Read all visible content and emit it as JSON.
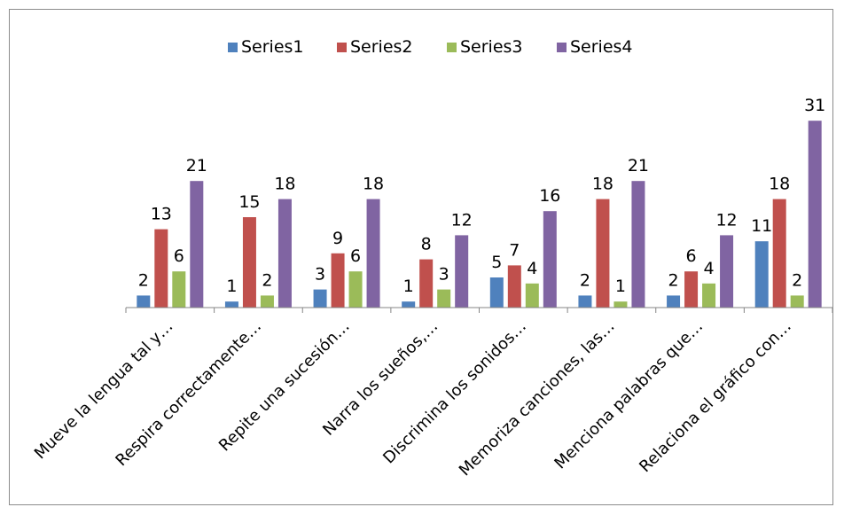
{
  "chart_data": {
    "type": "bar",
    "categories": [
      "Mueve la lengua tal y…",
      "Respira correctamente…",
      "Repite una sucesión…",
      "Narra los sueños,…",
      "Discrimina los sonidos…",
      "Memoriza canciones, las…",
      "Menciona palabras que…",
      "Relaciona el gráfico con…"
    ],
    "series": [
      {
        "name": "Series1",
        "color": "#4F81BD",
        "values": [
          2,
          1,
          3,
          1,
          5,
          2,
          2,
          11
        ]
      },
      {
        "name": "Series2",
        "color": "#C0504D",
        "values": [
          13,
          15,
          9,
          8,
          7,
          18,
          6,
          18
        ]
      },
      {
        "name": "Series3",
        "color": "#9BBB59",
        "values": [
          6,
          2,
          6,
          3,
          4,
          1,
          4,
          2
        ]
      },
      {
        "name": "Series4",
        "color": "#8064A2",
        "values": [
          21,
          18,
          18,
          12,
          16,
          21,
          12,
          31
        ]
      }
    ],
    "title": "",
    "xlabel": "",
    "ylabel": "",
    "ylim": [
      0,
      35
    ],
    "grid": false,
    "legend": "top-center",
    "data_labels": true
  }
}
